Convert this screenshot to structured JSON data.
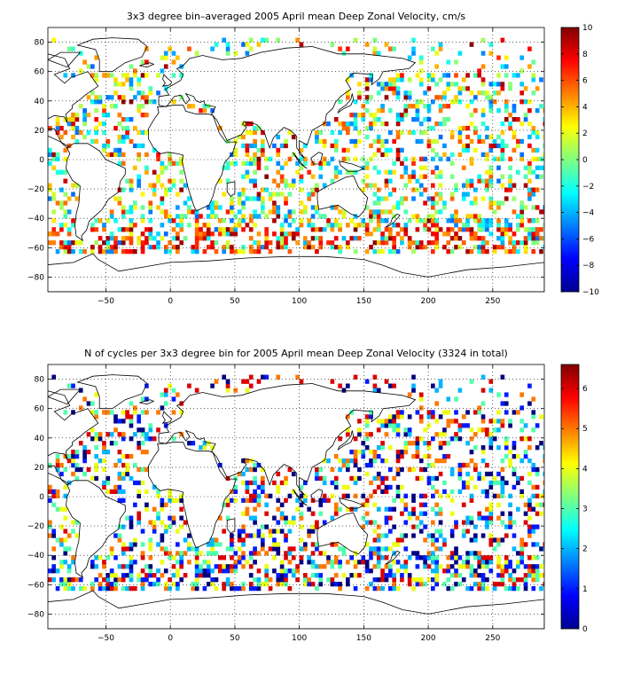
{
  "figure": {
    "panels": [
      {
        "title": "3x3 degree bin–averaged 2005 April mean Deep Zonal Velocity, cm/s",
        "x_ticks": [
          "−50",
          "0",
          "50",
          "100",
          "150",
          "200",
          "250"
        ],
        "y_ticks": [
          "80",
          "60",
          "40",
          "20",
          "0",
          "−20",
          "−40",
          "−60",
          "−80"
        ],
        "colorbar_ticks": [
          "10",
          "8",
          "6",
          "4",
          "2",
          "0",
          "−2",
          "−4",
          "−6",
          "−8",
          "−10"
        ]
      },
      {
        "title": "N of cycles per 3x3 degree bin for 2005 April mean Deep Zonal Velocity (3324 in total)",
        "x_ticks": [
          "−50",
          "0",
          "50",
          "100",
          "150",
          "200",
          "250"
        ],
        "y_ticks": [
          "80",
          "60",
          "40",
          "20",
          "0",
          "−20",
          "−40",
          "−60",
          "−80"
        ],
        "colorbar_ticks": [
          "6",
          "5",
          "4",
          "3",
          "2",
          "1",
          "0"
        ]
      }
    ]
  },
  "chart_data": [
    {
      "type": "heatmap",
      "title": "3x3 degree bin–averaged 2005 April mean Deep Zonal Velocity, cm/s",
      "xlabel": "",
      "ylabel": "",
      "xlim": [
        -95,
        290
      ],
      "ylim": [
        -90,
        90
      ],
      "x_ticks": [
        -50,
        0,
        50,
        100,
        150,
        200,
        250
      ],
      "y_ticks": [
        -80,
        -60,
        -40,
        -20,
        0,
        20,
        40,
        60,
        80
      ],
      "bin_size_deg": 3,
      "colorbar": {
        "min": -10,
        "max": 10,
        "ticks": [
          -10,
          -8,
          -6,
          -4,
          -2,
          0,
          2,
          4,
          6,
          8,
          10
        ],
        "colormap": "jet"
      },
      "grid": true,
      "basemap": "world coastlines"
    },
    {
      "type": "heatmap",
      "title": "N of cycles per 3x3 degree bin for 2005 April mean Deep Zonal Velocity (3324 in total)",
      "xlabel": "",
      "ylabel": "",
      "xlim": [
        -95,
        290
      ],
      "ylim": [
        -90,
        90
      ],
      "x_ticks": [
        -50,
        0,
        50,
        100,
        150,
        200,
        250
      ],
      "y_ticks": [
        -80,
        -60,
        -40,
        -20,
        0,
        20,
        40,
        60,
        80
      ],
      "bin_size_deg": 3,
      "total_cycles": 3324,
      "colorbar": {
        "min": 0,
        "max": 6.6,
        "ticks": [
          0,
          1,
          2,
          3,
          4,
          5,
          6
        ],
        "colormap": "jet"
      },
      "grid": true,
      "basemap": "world coastlines"
    }
  ]
}
